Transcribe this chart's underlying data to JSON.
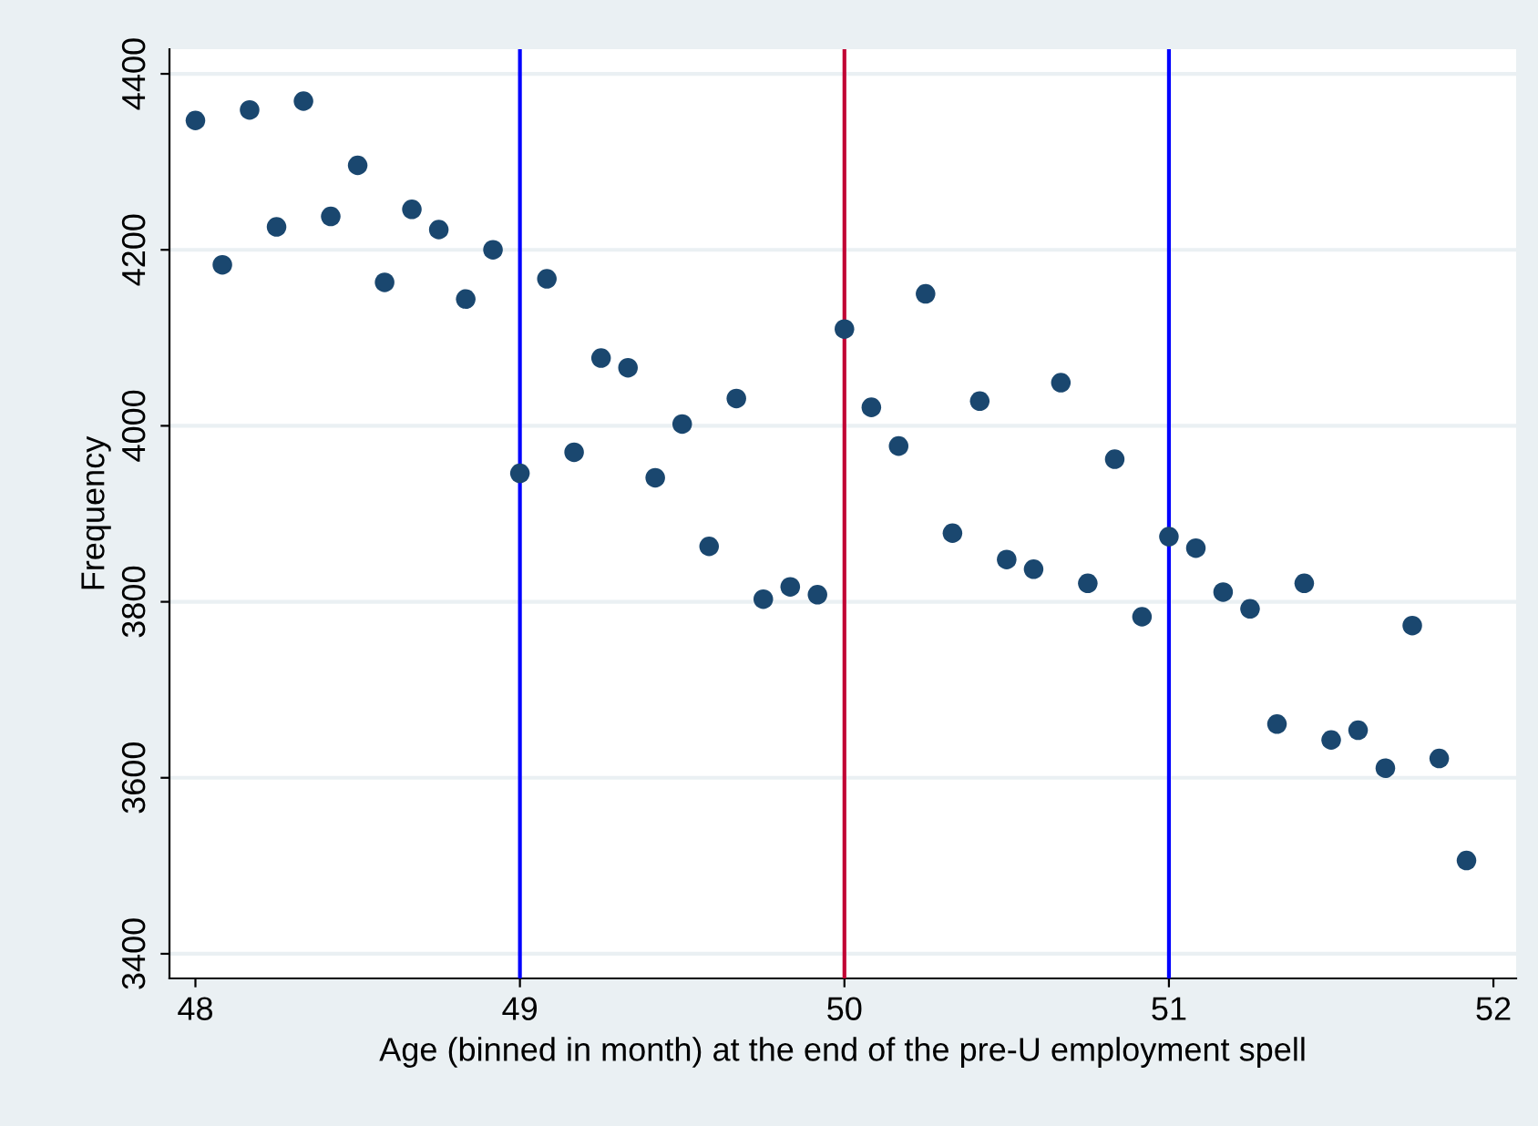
{
  "chart_data": {
    "type": "scatter",
    "xlabel": "Age (binned in month) at the end of the pre-U employment spell",
    "ylabel": "Frequency",
    "x": [
      48.0,
      48.083,
      48.167,
      48.25,
      48.333,
      48.417,
      48.5,
      48.583,
      48.667,
      48.75,
      48.833,
      48.917,
      49.0,
      49.083,
      49.167,
      49.25,
      49.333,
      49.417,
      49.5,
      49.583,
      49.667,
      49.75,
      49.833,
      49.917,
      50.0,
      50.083,
      50.167,
      50.25,
      50.333,
      50.417,
      50.5,
      50.583,
      50.667,
      50.75,
      50.833,
      50.917,
      51.0,
      51.083,
      51.167,
      51.25,
      51.333,
      51.417,
      51.5,
      51.583,
      51.667,
      51.75,
      51.833,
      51.917
    ],
    "series": [
      {
        "color": "#1a476f",
        "values": [
          4347,
          4183,
          4359,
          4226,
          4369,
          4238,
          4296,
          4163,
          4246,
          4223,
          4144,
          4200,
          3946,
          4167,
          3970,
          4077,
          4066,
          3941,
          4002,
          3863,
          4031,
          3803,
          3817,
          3808,
          4110,
          4021,
          3977,
          4150,
          3878,
          4028,
          3848,
          3837,
          4049,
          3821,
          3962,
          3783,
          3874,
          3861,
          3811,
          3792,
          3661,
          3821,
          3643,
          3654,
          3611,
          3773,
          3622,
          3506
        ]
      }
    ],
    "marker": "circle",
    "xlim": [
      47.92,
      52.07
    ],
    "xticks": [
      48,
      49,
      50,
      51,
      52
    ],
    "ylim": [
      3372,
      4428
    ],
    "yticks": [
      3400,
      3600,
      3800,
      4000,
      4200,
      4400
    ],
    "grid": "y",
    "ref_lines": [
      {
        "axis": "x",
        "value": 49,
        "color": "#0000ff"
      },
      {
        "axis": "x",
        "value": 50,
        "color": "#c10534"
      },
      {
        "axis": "x",
        "value": 51,
        "color": "#0000ff"
      }
    ]
  }
}
